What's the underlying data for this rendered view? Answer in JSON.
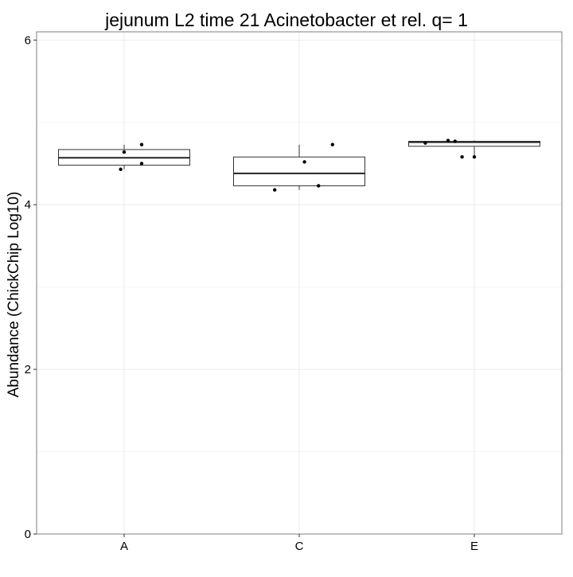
{
  "chart_data": {
    "type": "box",
    "title": "jejunum L2 time 21 Acinetobacter et rel. q= 1",
    "xlabel": "",
    "ylabel": "Abundance (ChickChip Log10)",
    "ylim": [
      0,
      6.1
    ],
    "yticks": [
      0,
      2,
      4,
      6
    ],
    "grid": true,
    "categories": [
      "A",
      "C",
      "E"
    ],
    "boxes": [
      {
        "category": "A",
        "whisker_low": 4.43,
        "q1": 4.48,
        "median": 4.57,
        "q3": 4.67,
        "whisker_high": 4.73
      },
      {
        "category": "C",
        "whisker_low": 4.18,
        "q1": 4.23,
        "median": 4.38,
        "q3": 4.58,
        "whisker_high": 4.73
      },
      {
        "category": "E",
        "whisker_low": 4.58,
        "q1": 4.71,
        "median": 4.76,
        "q3": 4.77,
        "whisker_high": 4.78
      }
    ],
    "points": [
      {
        "category": "A",
        "y": 4.43,
        "jitter": -0.02
      },
      {
        "category": "A",
        "y": 4.64,
        "jitter": 0.0
      },
      {
        "category": "A",
        "y": 4.5,
        "jitter": 0.1
      },
      {
        "category": "A",
        "y": 4.73,
        "jitter": 0.1
      },
      {
        "category": "C",
        "y": 4.18,
        "jitter": -0.14
      },
      {
        "category": "C",
        "y": 4.23,
        "jitter": 0.11
      },
      {
        "category": "C",
        "y": 4.52,
        "jitter": 0.03
      },
      {
        "category": "C",
        "y": 4.73,
        "jitter": 0.19
      },
      {
        "category": "E",
        "y": 4.75,
        "jitter": -0.28
      },
      {
        "category": "E",
        "y": 4.78,
        "jitter": -0.15
      },
      {
        "category": "E",
        "y": 4.77,
        "jitter": -0.11
      },
      {
        "category": "E",
        "y": 4.58,
        "jitter": -0.07
      },
      {
        "category": "E",
        "y": 4.58,
        "jitter": 0.0
      }
    ]
  }
}
